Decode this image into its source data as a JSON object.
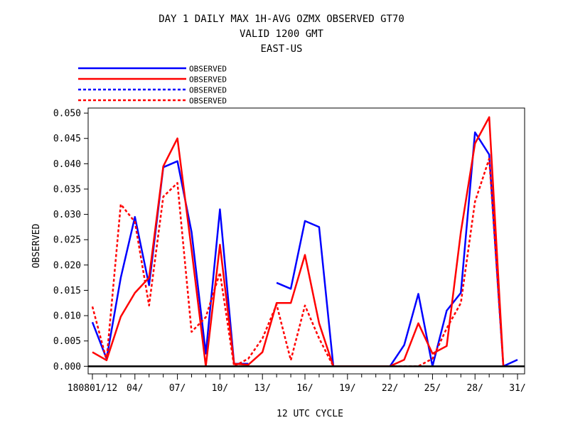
{
  "chart_data": {
    "type": "line",
    "title_lines": [
      "DAY 1 DAILY MAX   1H-AVG OZMX OBSERVED GT70",
      "VALID 1200 GMT",
      "EAST-US"
    ],
    "xlabel": "12 UTC CYCLE",
    "ylabel": "OBSERVED",
    "x_tick_labels": [
      "180801/12",
      "04/",
      "07/",
      "10/",
      "13/",
      "16/",
      "19/",
      "22/",
      "25/",
      "28/",
      "31/"
    ],
    "x_tick_days": [
      1,
      4,
      7,
      10,
      13,
      16,
      19,
      22,
      25,
      28,
      31
    ],
    "xlim": [
      0.7,
      31.5
    ],
    "ylim": [
      -0.0015,
      0.051
    ],
    "y_ticks": [
      0.0,
      0.005,
      0.01,
      0.015,
      0.02,
      0.025,
      0.03,
      0.035,
      0.04,
      0.045,
      0.05
    ],
    "y_tick_labels": [
      "0.000",
      "0.005",
      "0.010",
      "0.015",
      "0.020",
      "0.025",
      "0.030",
      "0.035",
      "0.040",
      "0.045",
      "0.050"
    ],
    "zero_line": true,
    "legend_position": "top-left",
    "series": [
      {
        "name": "OBSERVED",
        "color": "#0000ff",
        "style": "solid",
        "x": [
          1,
          2,
          3,
          4,
          5,
          6,
          7,
          8,
          9,
          10,
          11,
          12,
          13,
          14,
          15,
          16,
          17,
          18,
          19,
          20,
          21,
          22,
          23,
          24,
          25,
          26,
          27,
          28,
          29,
          30,
          31
        ],
        "values": [
          0.0087,
          0.0015,
          0.0175,
          0.0295,
          0.016,
          0.0393,
          0.0405,
          0.0265,
          0.0025,
          0.031,
          0.0005,
          0.0005,
          null,
          0.0165,
          0.0153,
          0.0287,
          0.0275,
          0.0,
          null,
          null,
          null,
          0.0,
          0.0042,
          0.0143,
          0.0,
          0.011,
          0.0145,
          0.0462,
          0.0418,
          0.0,
          0.0013
        ]
      },
      {
        "name": "OBSERVED",
        "color": "#ff0000",
        "style": "solid",
        "x": [
          1,
          2,
          3,
          4,
          5,
          6,
          7,
          8,
          9,
          10,
          11,
          12,
          13,
          14,
          15,
          16,
          17,
          18,
          19,
          20,
          21,
          22,
          23,
          24,
          25,
          26,
          27,
          28,
          29,
          30
        ],
        "values": [
          0.0028,
          0.0012,
          0.0098,
          0.0145,
          0.0175,
          0.0395,
          0.045,
          0.023,
          0.0,
          0.024,
          0.0005,
          0.0003,
          0.0028,
          0.0125,
          0.0125,
          0.022,
          0.0085,
          0.0,
          0.0,
          0.0,
          0.0,
          0.0,
          0.0013,
          0.0085,
          0.0025,
          0.004,
          0.0265,
          0.044,
          0.0492,
          0.0
        ]
      },
      {
        "name": "OBSERVED",
        "color": "#0000ff",
        "style": "dashed",
        "x": [],
        "values": []
      },
      {
        "name": "OBSERVED",
        "color": "#ff0000",
        "style": "dashed",
        "x": [
          1,
          2,
          3,
          4,
          5,
          6,
          7,
          8,
          9,
          10,
          11,
          12,
          13,
          14,
          15,
          16,
          17,
          18,
          24,
          25,
          26,
          27,
          28,
          29,
          30
        ],
        "values": [
          0.0118,
          0.0012,
          0.032,
          0.0285,
          0.012,
          0.0335,
          0.0362,
          0.0068,
          0.0097,
          0.0185,
          0.0,
          0.0015,
          0.0055,
          0.0122,
          0.0012,
          0.012,
          0.0055,
          0.0,
          0.0,
          0.0015,
          0.0075,
          0.0125,
          0.0325,
          0.041,
          0.0
        ]
      }
    ]
  }
}
